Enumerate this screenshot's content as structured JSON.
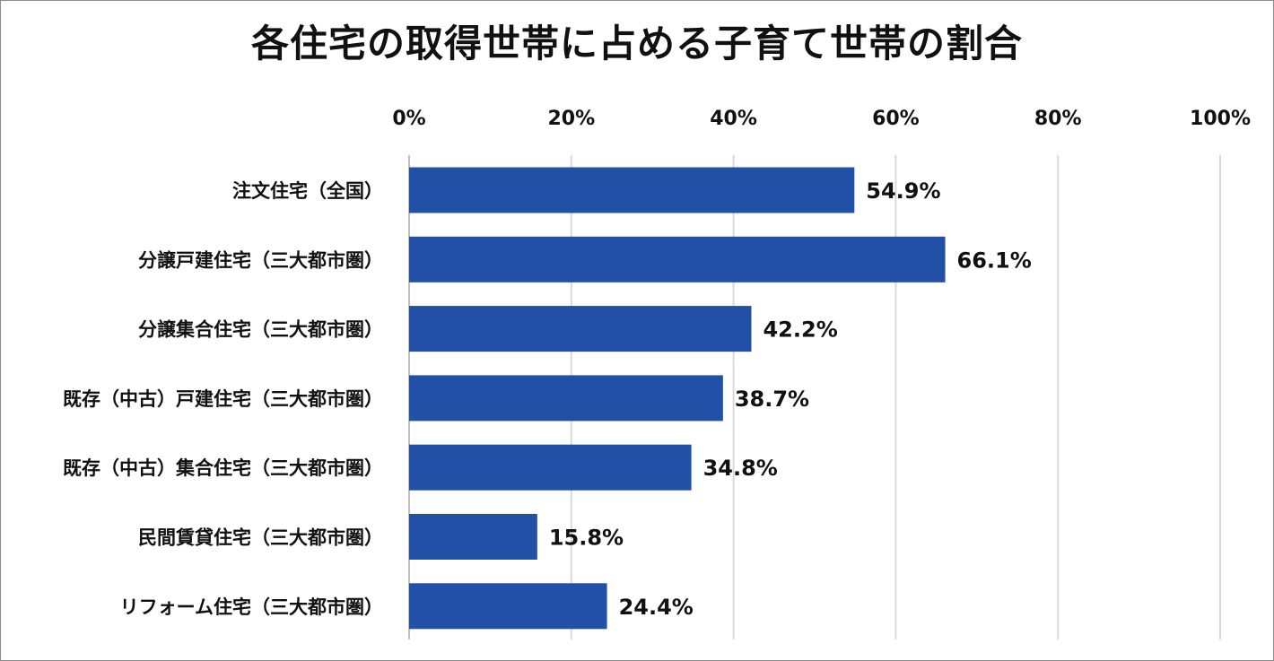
{
  "chart_data": {
    "type": "bar",
    "orientation": "horizontal",
    "title": "各住宅の取得世帯に占める子育て世帯の割合",
    "categories": [
      "注文住宅（全国）",
      "分譲戸建住宅（三大都市圏）",
      "分譲集合住宅（三大都市圏）",
      "既存（中古）戸建住宅（三大都市圏）",
      "既存（中古）集合住宅（三大都市圏）",
      "民間賃貸住宅（三大都市圏）",
      "リフォーム住宅（三大都市圏）"
    ],
    "values": [
      54.9,
      66.1,
      42.2,
      38.7,
      34.8,
      15.8,
      24.4
    ],
    "data_labels": [
      "54.9%",
      "66.1%",
      "42.2%",
      "38.7%",
      "34.8%",
      "15.8%",
      "24.4%"
    ],
    "xlim": [
      0,
      100
    ],
    "x_ticks": [
      "0%",
      "20%",
      "40%",
      "60%",
      "80%",
      "100%"
    ],
    "x_tick_values": [
      0,
      20,
      40,
      60,
      80,
      100
    ],
    "xaxis_position": "top",
    "grid": true,
    "bar_color": "#2150a6",
    "grid_color": "#d9d9d9"
  }
}
